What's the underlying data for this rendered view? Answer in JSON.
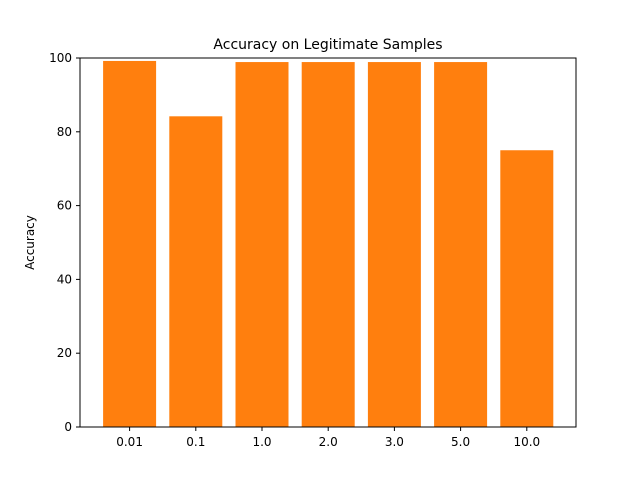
{
  "chart_data": {
    "type": "bar",
    "title": "Accuracy on Legitimate Samples",
    "xlabel": "",
    "ylabel": "Accuracy",
    "categories": [
      "0.01",
      "0.1",
      "1.0",
      "2.0",
      "3.0",
      "5.0",
      "10.0"
    ],
    "values": [
      99.2,
      84.2,
      98.9,
      98.9,
      98.9,
      98.9,
      75.0
    ],
    "ylim": [
      0,
      100
    ],
    "yticks": [
      0,
      20,
      40,
      60,
      80,
      100
    ],
    "ytick_labels": [
      "0",
      "20",
      "40",
      "60",
      "80",
      "100"
    ],
    "grid": false,
    "colors": {
      "bar": "#ff7f0e",
      "axis": "#000000",
      "background": "#ffffff"
    }
  }
}
